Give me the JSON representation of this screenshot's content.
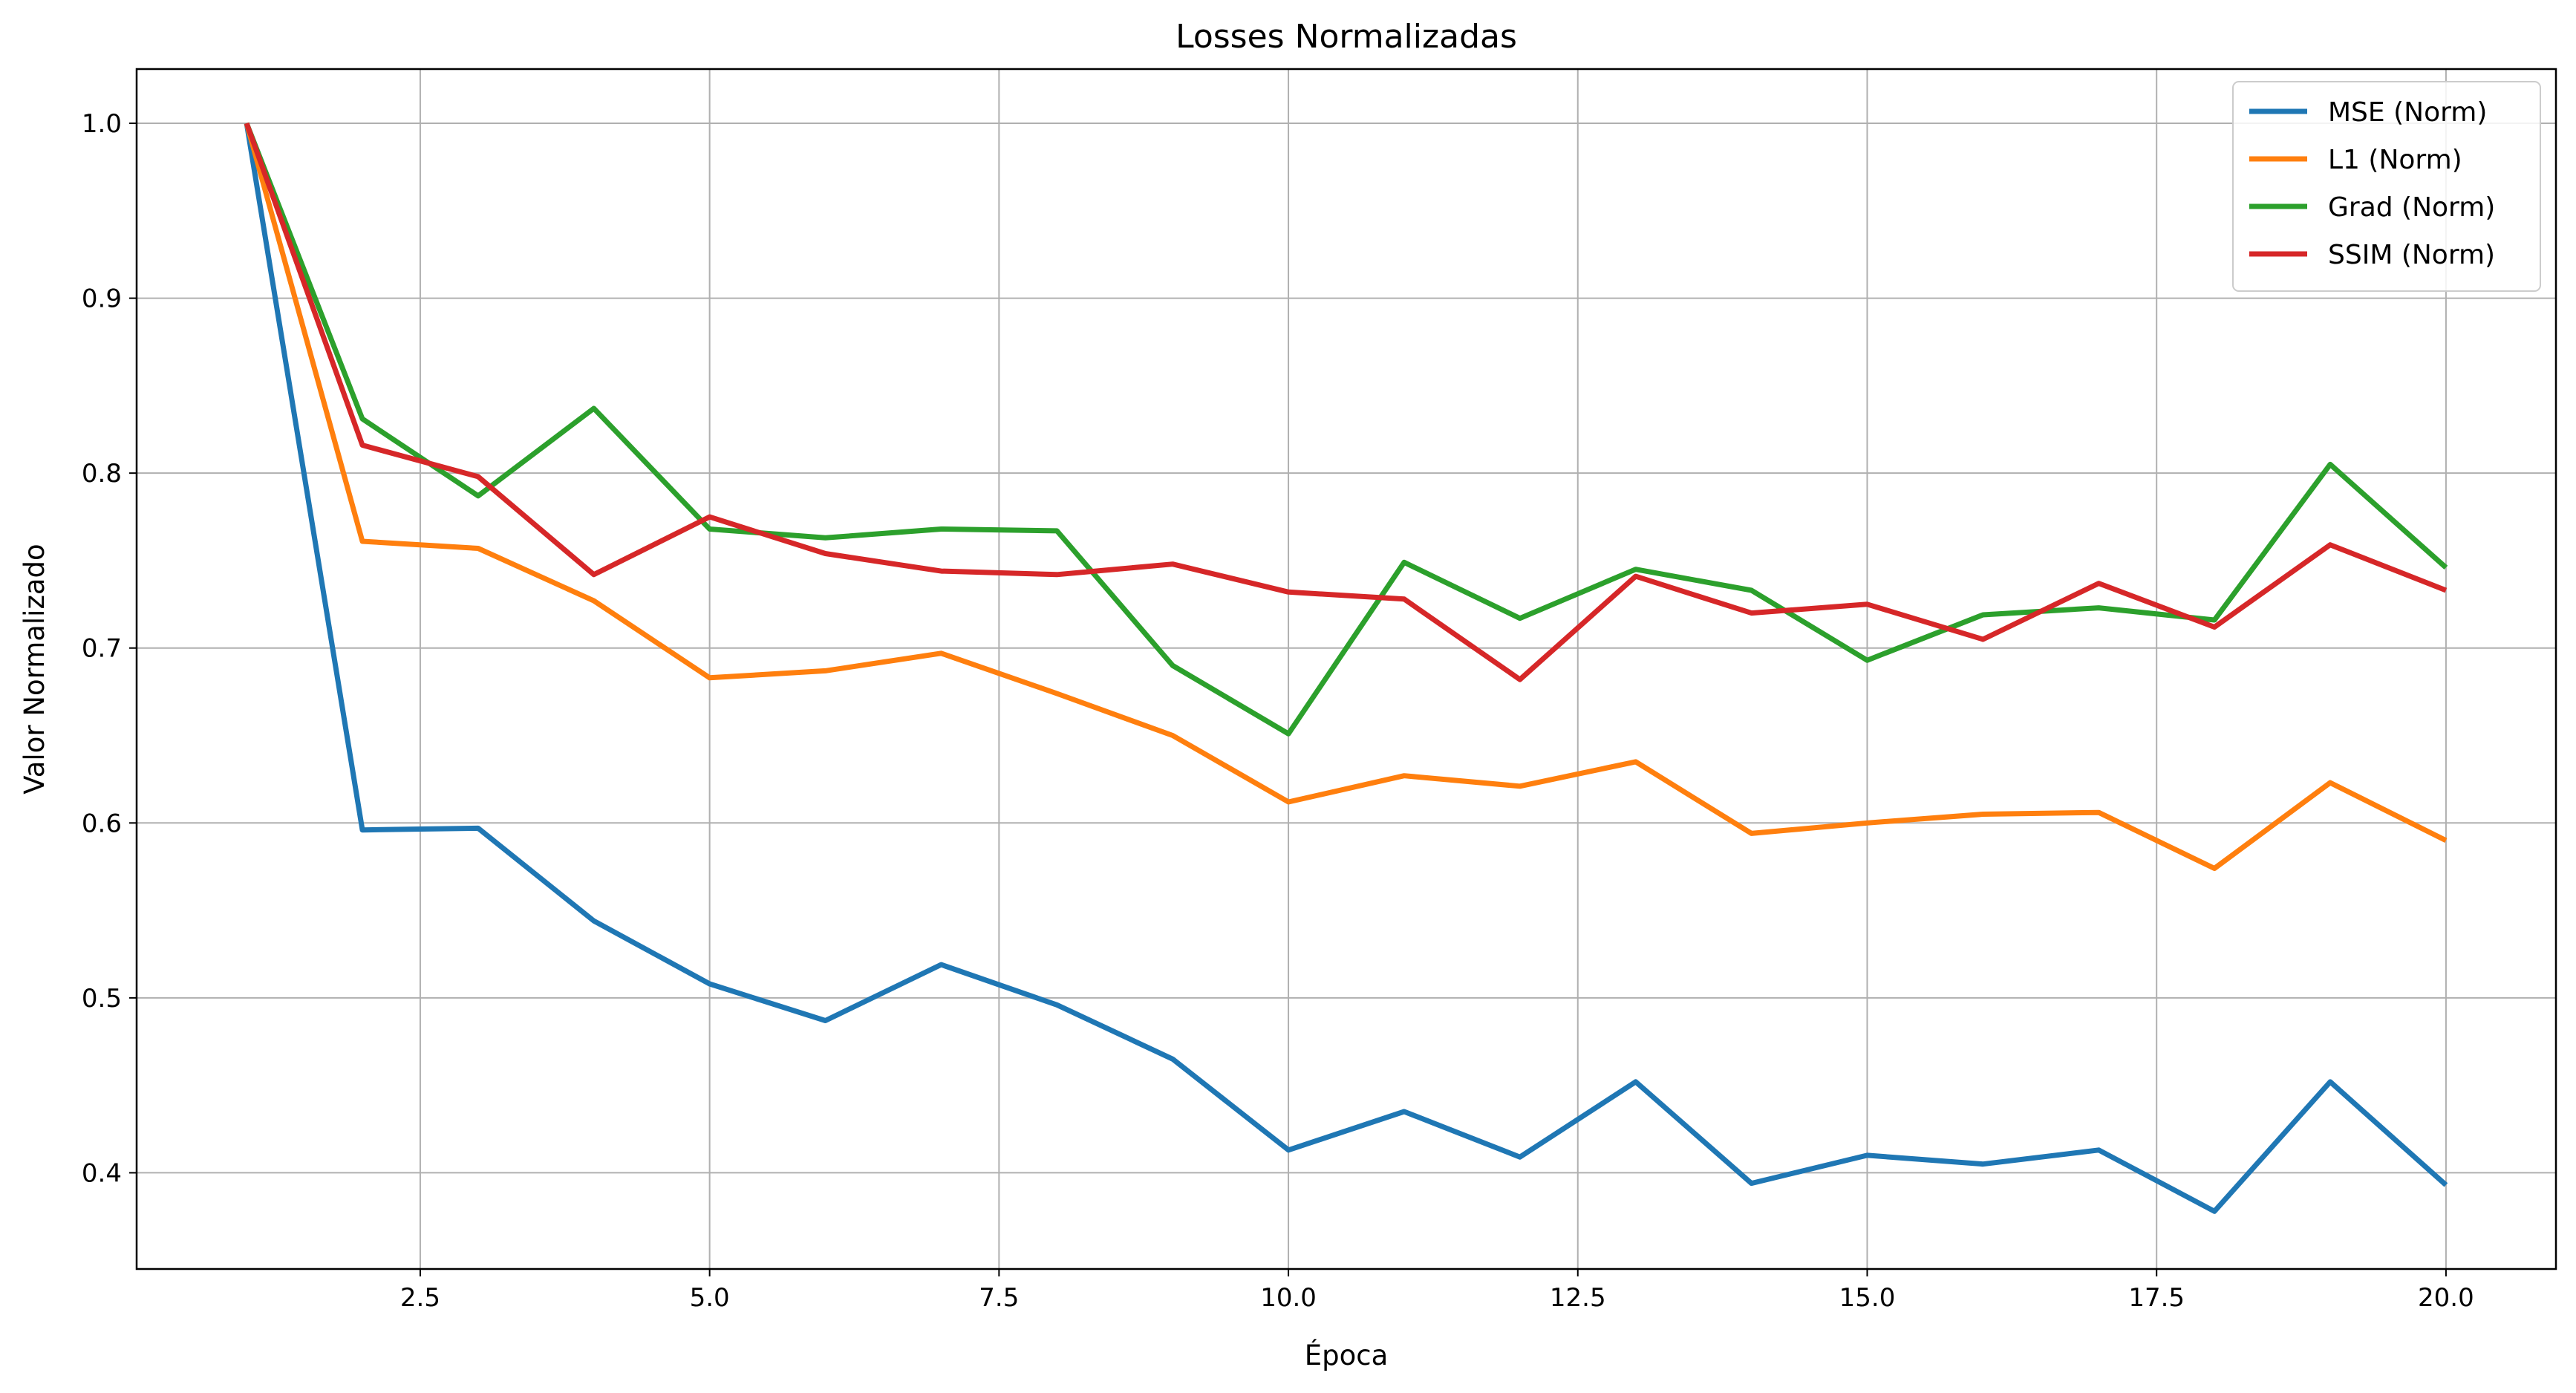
{
  "chart_data": {
    "type": "line",
    "title": "Losses Normalizadas",
    "xlabel": "Época",
    "ylabel": "Valor Normalizado",
    "xlim": [
      0.05,
      20.95
    ],
    "ylim": [
      0.345,
      1.031
    ],
    "xticks": [
      2.5,
      5.0,
      7.5,
      10.0,
      12.5,
      15.0,
      17.5,
      20.0
    ],
    "xtick_labels": [
      "2.5",
      "5.0",
      "7.5",
      "10.0",
      "12.5",
      "15.0",
      "17.5",
      "20.0"
    ],
    "yticks": [
      0.4,
      0.5,
      0.6,
      0.7,
      0.8,
      0.9,
      1.0
    ],
    "ytick_labels": [
      "0.4",
      "0.5",
      "0.6",
      "0.7",
      "0.8",
      "0.9",
      "1.0"
    ],
    "grid": true,
    "legend_position": "top-right",
    "x": [
      1,
      2,
      3,
      4,
      5,
      6,
      7,
      8,
      9,
      10,
      11,
      12,
      13,
      14,
      15,
      16,
      17,
      18,
      19,
      20
    ],
    "series": [
      {
        "name": "MSE (Norm)",
        "color": "#1f77b4",
        "values": [
          1.0,
          0.596,
          0.597,
          0.544,
          0.508,
          0.487,
          0.519,
          0.496,
          0.465,
          0.413,
          0.435,
          0.409,
          0.452,
          0.394,
          0.41,
          0.405,
          0.413,
          0.378,
          0.452,
          0.393
        ]
      },
      {
        "name": "L1 (Norm)",
        "color": "#ff7f0e",
        "values": [
          1.0,
          0.761,
          0.757,
          0.727,
          0.683,
          0.687,
          0.697,
          0.674,
          0.65,
          0.612,
          0.627,
          0.621,
          0.635,
          0.594,
          0.6,
          0.605,
          0.606,
          0.574,
          0.623,
          0.59
        ]
      },
      {
        "name": "Grad (Norm)",
        "color": "#2ca02c",
        "values": [
          1.0,
          0.831,
          0.787,
          0.837,
          0.768,
          0.763,
          0.768,
          0.767,
          0.69,
          0.651,
          0.749,
          0.717,
          0.745,
          0.733,
          0.693,
          0.719,
          0.723,
          0.716,
          0.805,
          0.746
        ]
      },
      {
        "name": "SSIM (Norm)",
        "color": "#d62728",
        "values": [
          1.0,
          0.816,
          0.798,
          0.742,
          0.775,
          0.754,
          0.744,
          0.742,
          0.748,
          0.732,
          0.728,
          0.682,
          0.741,
          0.72,
          0.725,
          0.705,
          0.737,
          0.712,
          0.759,
          0.733
        ]
      }
    ]
  }
}
